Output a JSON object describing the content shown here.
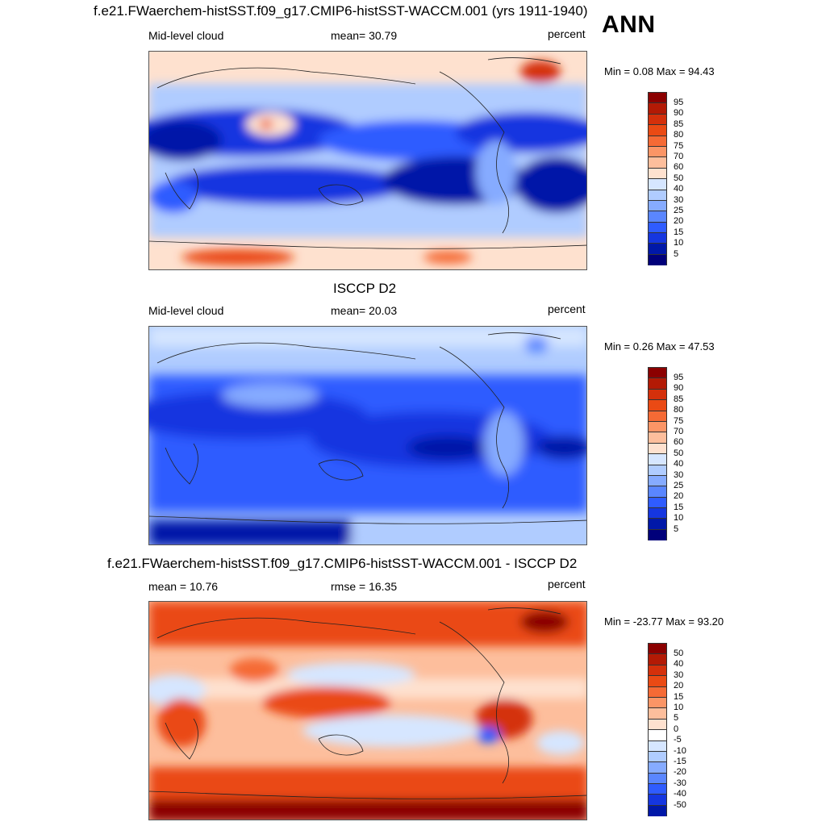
{
  "page": {
    "season": "ANN"
  },
  "panels": [
    {
      "title": "f.e21.FWaerchem-histSST.f09_g17.CMIP6-histSST-WACCM.001 (yrs 1911-1940)",
      "left_label": "Mid-level cloud",
      "center_label": "mean=  30.79",
      "units": "percent",
      "minmax": "Min =   0.08 Max =  94.43",
      "colorbar_labels": [
        "95",
        "90",
        "85",
        "80",
        "75",
        "70",
        "60",
        "50",
        "40",
        "30",
        "25",
        "20",
        "15",
        "10",
        "5"
      ],
      "colorbar_colors": [
        "#8b0000",
        "#b31a05",
        "#d4300b",
        "#ea4a14",
        "#f56a35",
        "#fb9566",
        "#fdbe9c",
        "#fee1cf",
        "#ffffff",
        "#d6e6ff",
        "#b0ccff",
        "#86abff",
        "#5a86ff",
        "#2f5cff",
        "#1536e0",
        "#0018a8"
      ]
    },
    {
      "title": "ISCCP D2",
      "left_label": "Mid-level cloud",
      "center_label": "mean=  20.03",
      "units": "percent",
      "minmax": "Min =   0.26 Max =  47.53",
      "colorbar_labels": [
        "95",
        "90",
        "85",
        "80",
        "75",
        "70",
        "60",
        "50",
        "40",
        "30",
        "25",
        "20",
        "15",
        "10",
        "5"
      ],
      "colorbar_colors": [
        "#8b0000",
        "#b31a05",
        "#d4300b",
        "#ea4a14",
        "#f56a35",
        "#fb9566",
        "#fdbe9c",
        "#fee1cf",
        "#ffffff",
        "#d6e6ff",
        "#b0ccff",
        "#86abff",
        "#5a86ff",
        "#2f5cff",
        "#1536e0",
        "#0018a8"
      ]
    },
    {
      "title": "f.e21.FWaerchem-histSST.f09_g17.CMIP6-histSST-WACCM.001 - ISCCP D2",
      "left_label": "mean =  10.76",
      "center_label": "rmse =  16.35",
      "units": "percent",
      "minmax": "Min = -23.77 Max =  93.20",
      "colorbar_labels": [
        "50",
        "40",
        "30",
        "20",
        "15",
        "10",
        "5",
        "0",
        "-5",
        "-10",
        "-15",
        "-20",
        "-30",
        "-40",
        "-50"
      ],
      "colorbar_colors": [
        "#8b0000",
        "#b31a05",
        "#d4300b",
        "#ea4a14",
        "#f56a35",
        "#fb9566",
        "#fdbe9c",
        "#fee1cf",
        "#ffffff",
        "#d6e6ff",
        "#b0ccff",
        "#86abff",
        "#5a86ff",
        "#2f5cff",
        "#1536e0",
        "#0018a8"
      ]
    }
  ]
}
